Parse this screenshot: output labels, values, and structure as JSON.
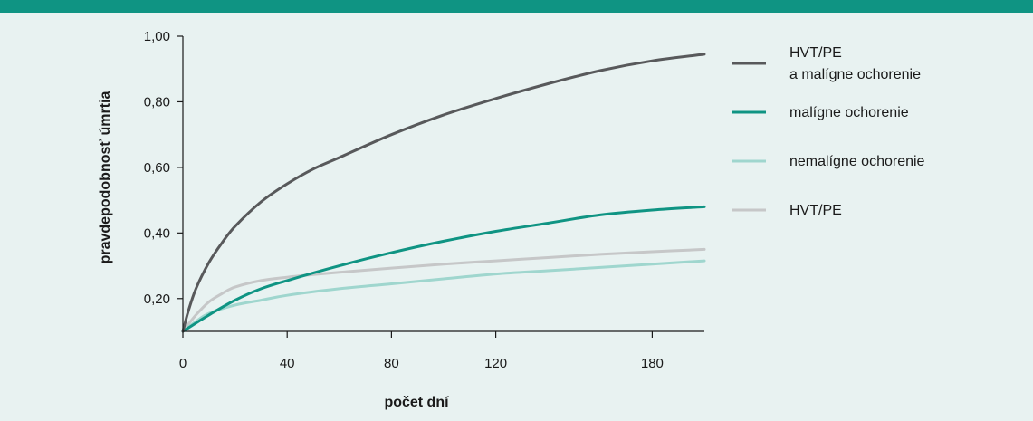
{
  "colors": {
    "top_bar": "#0f9483",
    "background": "#e8f2f1",
    "axis": "#1a1a1a"
  },
  "chart_data": {
    "type": "line",
    "title": "",
    "xlabel": "počet dní",
    "ylabel": "pravdepodobnosť úmrtia",
    "xlim": [
      0,
      200
    ],
    "ylim": [
      0.1,
      1.0
    ],
    "x_ticks": [
      0,
      40,
      80,
      120,
      180
    ],
    "x_tick_labels": [
      "0",
      "40",
      "80",
      "120",
      "180"
    ],
    "y_ticks": [
      0.2,
      0.4,
      0.6,
      0.8,
      1.0
    ],
    "y_tick_labels": [
      "0,20",
      "0,40",
      "0,60",
      "0,80",
      "1,00"
    ],
    "grid": false,
    "legend_position": "right",
    "series": [
      {
        "name": "HVT/PE\na malígne ochorenie",
        "legend_lines": [
          "HVT/PE",
          "a malígne ochorenie"
        ],
        "color": "#58595b",
        "x": [
          0,
          2,
          5,
          10,
          15,
          20,
          30,
          40,
          50,
          60,
          80,
          100,
          120,
          140,
          160,
          180,
          200
        ],
        "y": [
          0.1,
          0.16,
          0.23,
          0.31,
          0.37,
          0.42,
          0.495,
          0.55,
          0.595,
          0.63,
          0.7,
          0.76,
          0.81,
          0.855,
          0.895,
          0.925,
          0.945
        ]
      },
      {
        "name": "malígne ochorenie",
        "legend_lines": [
          "malígne ochorenie"
        ],
        "color": "#0f9483",
        "x": [
          0,
          5,
          10,
          20,
          30,
          40,
          60,
          80,
          100,
          120,
          140,
          160,
          180,
          200
        ],
        "y": [
          0.1,
          0.125,
          0.15,
          0.195,
          0.23,
          0.255,
          0.3,
          0.34,
          0.375,
          0.405,
          0.43,
          0.455,
          0.47,
          0.48
        ]
      },
      {
        "name": "nemalígne ochorenie",
        "legend_lines": [
          "nemalígne ochorenie"
        ],
        "color": "#9fd6ce",
        "x": [
          0,
          5,
          10,
          20,
          30,
          40,
          60,
          80,
          100,
          120,
          140,
          160,
          180,
          200
        ],
        "y": [
          0.1,
          0.13,
          0.155,
          0.18,
          0.195,
          0.21,
          0.23,
          0.245,
          0.26,
          0.275,
          0.285,
          0.295,
          0.305,
          0.315
        ]
      },
      {
        "name": "HVT/PE",
        "legend_lines": [
          "HVT/PE"
        ],
        "color": "#c6c7c8",
        "x": [
          0,
          5,
          10,
          15,
          20,
          30,
          40,
          50,
          60,
          80,
          100,
          120,
          140,
          160,
          180,
          200
        ],
        "y": [
          0.1,
          0.15,
          0.19,
          0.215,
          0.235,
          0.255,
          0.265,
          0.273,
          0.28,
          0.293,
          0.305,
          0.315,
          0.325,
          0.335,
          0.343,
          0.35
        ]
      }
    ]
  }
}
